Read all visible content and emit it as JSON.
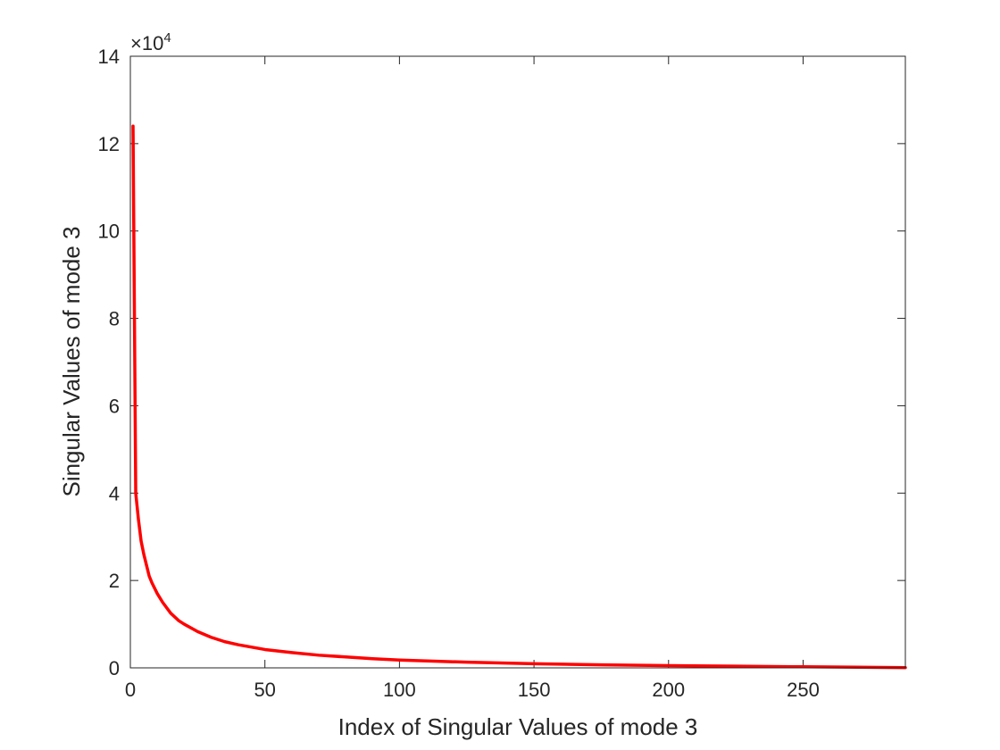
{
  "chart_data": {
    "type": "line",
    "title": "",
    "xlabel": "Index of Singular Values of mode 3",
    "ylabel": "Singular Values of mode 3",
    "xlim": [
      0,
      288
    ],
    "ylim": [
      0,
      140000
    ],
    "x_ticks": [
      0,
      50,
      100,
      150,
      200,
      250
    ],
    "y_ticks": [
      0,
      2,
      4,
      6,
      8,
      10,
      12,
      14
    ],
    "y_exponent_label": "×10",
    "y_exponent": "4",
    "y_scale_factor": 10000,
    "grid": false,
    "series": [
      {
        "color": "#ff0000",
        "x": [
          1,
          2,
          3,
          4,
          5,
          6,
          7,
          8,
          10,
          12,
          15,
          18,
          20,
          25,
          30,
          35,
          40,
          50,
          60,
          70,
          80,
          90,
          100,
          125,
          150,
          175,
          200,
          225,
          250,
          270,
          288
        ],
        "y": [
          124000,
          40000,
          34000,
          29000,
          26000,
          23500,
          21000,
          19500,
          17000,
          15000,
          12500,
          10800,
          10000,
          8300,
          7000,
          6000,
          5300,
          4200,
          3500,
          2900,
          2500,
          2100,
          1800,
          1300,
          950,
          700,
          500,
          380,
          250,
          150,
          50
        ]
      }
    ]
  }
}
